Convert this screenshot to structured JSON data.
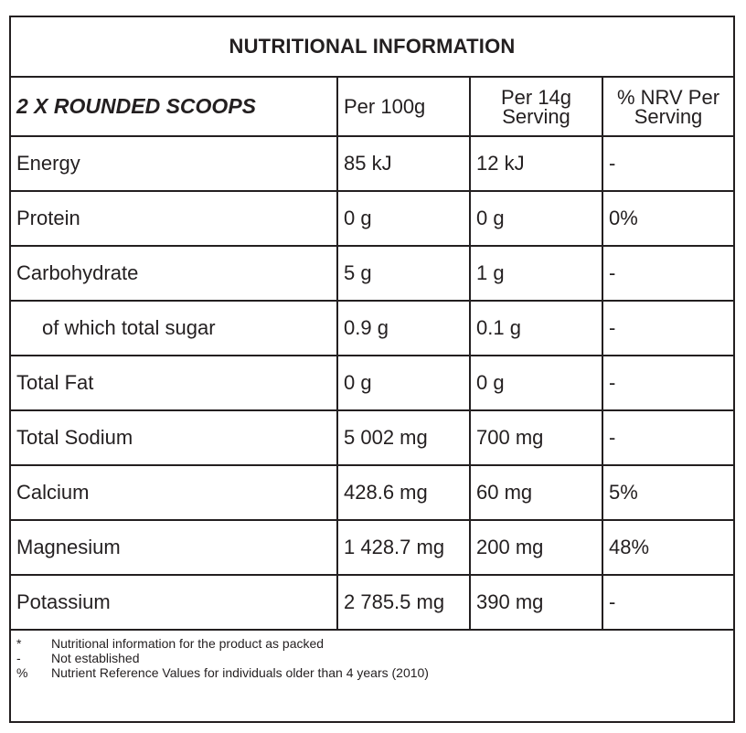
{
  "title": "NUTRITIONAL INFORMATION",
  "header": {
    "col1": "2 X ROUNDED SCOOPS",
    "col2": "Per 100g",
    "col3_line1": "Per 14g",
    "col3_line2": "Serving",
    "col4_line1": "% NRV Per",
    "col4_line2": "Serving"
  },
  "rows": [
    {
      "name": "Energy",
      "per100": "85 kJ",
      "perServing": "12 kJ",
      "nrv": "-"
    },
    {
      "name": "Protein",
      "per100": "0 g",
      "perServing": "0 g",
      "nrv": "0%"
    },
    {
      "name": "Carbohydrate",
      "per100": "5 g",
      "perServing": "1 g",
      "nrv": "-"
    },
    {
      "name": "of which total sugar",
      "per100": "0.9 g",
      "perServing": "0.1 g",
      "nrv": "-"
    },
    {
      "name": "Total Fat",
      "per100": "0 g",
      "perServing": "0 g",
      "nrv": "-"
    },
    {
      "name": "Total Sodium",
      "per100": "5 002 mg",
      "perServing": "700 mg",
      "nrv": "-"
    },
    {
      "name": "Calcium",
      "per100": "428.6 mg",
      "perServing": "60 mg",
      "nrv": "5%"
    },
    {
      "name": "Magnesium",
      "per100": "1 428.7 mg",
      "perServing": "200 mg",
      "nrv": "48%"
    },
    {
      "name": "Potassium",
      "per100": "2 785.5 mg",
      "perServing": "390 mg",
      "nrv": "-"
    }
  ],
  "notes": [
    {
      "symbol": "*",
      "text": "Nutritional information for the product as packed"
    },
    {
      "symbol": "-",
      "text": "Not established"
    },
    {
      "symbol": "%",
      "text": "Nutrient Reference Values for individuals older than 4 years (2010)"
    }
  ]
}
